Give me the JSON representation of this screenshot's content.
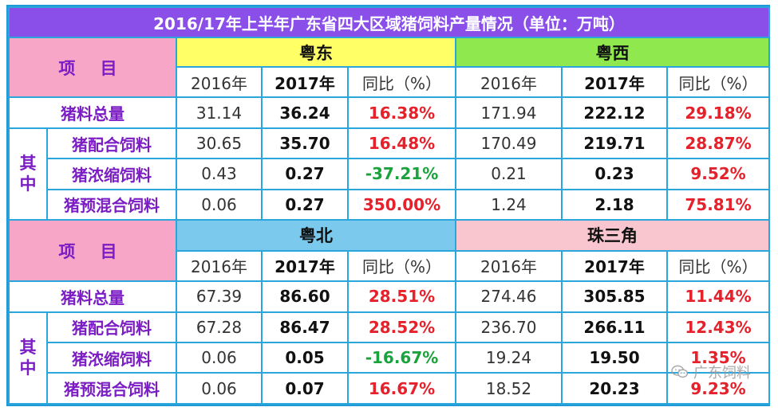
{
  "title": "2016/17年上半年广东省四大区域猪饲料产量情况（单位：万吨）",
  "item_header": "项 目",
  "qizhong": "其中",
  "col_2016": "2016年",
  "col_2017": "2017年",
  "col_yoy": "同比（%）",
  "labels": {
    "total": "猪料总量",
    "compound": "猪配合饲料",
    "concentrate": "猪浓缩饲料",
    "premix": "猪预混合饲料"
  },
  "colors": {
    "title_bg": "#8a4fe8",
    "yuedong": "#ffff66",
    "yuexi": "#8ee84e",
    "yuebei": "#7cc9ee",
    "zhusanjiao": "#f9c6cf",
    "positive": "#e5212b",
    "negative": "#1aa33c"
  },
  "blocks": [
    {
      "regions": [
        {
          "name": "粤东",
          "rows": [
            {
              "v2016": "31.14",
              "v2017": "36.24",
              "yoy": "16.38%"
            },
            {
              "v2016": "30.65",
              "v2017": "35.70",
              "yoy": "16.48%"
            },
            {
              "v2016": "0.43",
              "v2017": "0.27",
              "yoy": "-37.21%"
            },
            {
              "v2016": "0.06",
              "v2017": "0.27",
              "yoy": "350.00%"
            }
          ]
        },
        {
          "name": "粤西",
          "rows": [
            {
              "v2016": "171.94",
              "v2017": "222.12",
              "yoy": "29.18%"
            },
            {
              "v2016": "170.49",
              "v2017": "219.71",
              "yoy": "28.87%"
            },
            {
              "v2016": "0.21",
              "v2017": "0.23",
              "yoy": "9.52%"
            },
            {
              "v2016": "1.24",
              "v2017": "2.18",
              "yoy": "75.81%"
            }
          ]
        }
      ]
    },
    {
      "regions": [
        {
          "name": "粤北",
          "rows": [
            {
              "v2016": "67.39",
              "v2017": "86.60",
              "yoy": "28.51%"
            },
            {
              "v2016": "67.28",
              "v2017": "86.47",
              "yoy": "28.52%"
            },
            {
              "v2016": "0.06",
              "v2017": "0.05",
              "yoy": "-16.67%"
            },
            {
              "v2016": "0.06",
              "v2017": "0.07",
              "yoy": "16.67%"
            }
          ]
        },
        {
          "name": "珠三角",
          "rows": [
            {
              "v2016": "274.46",
              "v2017": "305.85",
              "yoy": "11.44%"
            },
            {
              "v2016": "236.70",
              "v2017": "266.11",
              "yoy": "12.43%"
            },
            {
              "v2016": "19.24",
              "v2017": "19.50",
              "yoy": "1.35%"
            },
            {
              "v2016": "18.52",
              "v2017": "20.23",
              "yoy": "9.23%"
            }
          ]
        }
      ]
    }
  ],
  "watermark": "广东饲料",
  "watermark_icon": "wechat-icon"
}
